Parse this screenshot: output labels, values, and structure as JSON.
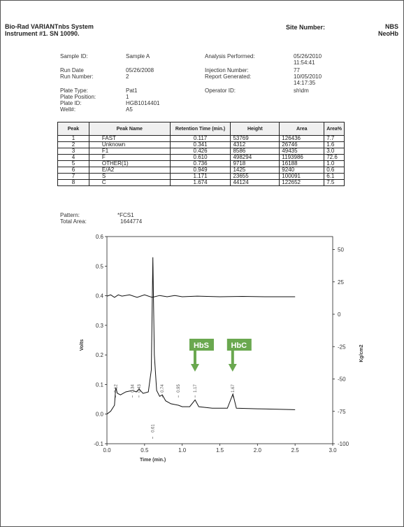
{
  "header": {
    "system": "Bio-Rad VARIANTnbs System",
    "instrument": "Instrument #1. SN 10090.",
    "site_label": "Site Number:",
    "site_value_1": "NBS",
    "site_value_2": "NeoHb"
  },
  "info": {
    "sample_id_label": "Sample ID:",
    "sample_id": "Sample A",
    "run_date_label": "Run Date",
    "run_date": "05/26/2008",
    "run_number_label": "Run Number:",
    "run_number": "2",
    "plate_type_label": "Plate Type:",
    "plate_type": "Pat1",
    "plate_position_label": "Plate Position:",
    "plate_position": "1",
    "plate_id_label": "Plate ID:",
    "plate_id": "HGB1014401",
    "well_label": "Well#:",
    "well": "A5",
    "analysis_label": "Analysis Performed:",
    "analysis_date": "05/26/2010",
    "analysis_time": "11:54:41",
    "injection_label": "Injection Number:",
    "injection": "77",
    "report_label": "Report Generated:",
    "report_date": "10/05/2010",
    "report_time": "14:17:35",
    "operator_label": "Operator ID:",
    "operator": "sh\\dm"
  },
  "table": {
    "headers": [
      "Peak",
      "Peak Name",
      "Retention Time (min.)",
      "Height",
      "Area",
      "Area%"
    ],
    "rows": [
      [
        "1",
        "FAST",
        "0.117",
        "53769",
        "126436",
        "7.7"
      ],
      [
        "2",
        "Unknown",
        "0.341",
        "4312",
        "26746",
        "1.6"
      ],
      [
        "3",
        "F1",
        "0.426",
        "8586",
        "49435",
        "3.0"
      ],
      [
        "4",
        "F",
        "0.610",
        "498294",
        "1193986",
        "72.6"
      ],
      [
        "5",
        "OTHER(1)",
        "0.736",
        "9718",
        "16188",
        "1.0"
      ],
      [
        "6",
        "E/A2",
        "0.949",
        "1425",
        "9240",
        "0.6"
      ],
      [
        "7",
        "S",
        "1.171",
        "23655",
        "100091",
        "6.1"
      ],
      [
        "8",
        "C",
        "1.674",
        "44124",
        "122652",
        "7.5"
      ]
    ]
  },
  "pattern": {
    "pattern_label": "Pattern:",
    "pattern_value": "*FCS1",
    "total_area_label": "Total Area:",
    "total_area_value": "1644774"
  },
  "chart_data": {
    "type": "line",
    "xlabel": "Time (min.)",
    "ylabel": "Volts",
    "y2label": "Kg/cm2",
    "xlim": [
      0,
      3.0
    ],
    "ylim": [
      -0.1,
      0.6
    ],
    "y2lim": [
      -100,
      60
    ],
    "x_ticks": [
      "0.0",
      "0.5",
      "1.0",
      "1.5",
      "2.0",
      "2.5",
      "3.0"
    ],
    "y_ticks": [
      "-0.1",
      "0.0",
      "0.1",
      "0.2",
      "0.3",
      "0.4",
      "0.5",
      "0.6"
    ],
    "y2_ticks": [
      "50",
      "25",
      "0",
      "-25",
      "-50",
      "-75",
      "-100"
    ],
    "peak_labels": [
      {
        "x": 0.117,
        "label": "0.12"
      },
      {
        "x": 0.341,
        "label": "0.34"
      },
      {
        "x": 0.426,
        "label": "0.43"
      },
      {
        "x": 0.61,
        "label": "0.61"
      },
      {
        "x": 0.736,
        "label": "0.74"
      },
      {
        "x": 0.949,
        "label": "0.95"
      },
      {
        "x": 1.171,
        "label": "1.17"
      },
      {
        "x": 1.674,
        "label": "1.67"
      }
    ],
    "callouts": [
      {
        "label": "HbS",
        "x": 1.17
      },
      {
        "label": "HbC",
        "x": 1.67
      }
    ],
    "callout_color": "#6aa84f",
    "series": [
      {
        "name": "",
        "axis": "volts",
        "points": [
          [
            0.0,
            0.0
          ],
          [
            0.05,
            0.01
          ],
          [
            0.1,
            0.03
          ],
          [
            0.117,
            0.09
          ],
          [
            0.14,
            0.07
          ],
          [
            0.18,
            0.065
          ],
          [
            0.25,
            0.075
          ],
          [
            0.341,
            0.08
          ],
          [
            0.39,
            0.075
          ],
          [
            0.426,
            0.085
          ],
          [
            0.48,
            0.07
          ],
          [
            0.55,
            0.075
          ],
          [
            0.59,
            0.15
          ],
          [
            0.61,
            0.53
          ],
          [
            0.63,
            0.2
          ],
          [
            0.66,
            0.08
          ],
          [
            0.7,
            0.06
          ],
          [
            0.736,
            0.065
          ],
          [
            0.78,
            0.045
          ],
          [
            0.85,
            0.035
          ],
          [
            0.949,
            0.03
          ],
          [
            1.0,
            0.025
          ],
          [
            1.1,
            0.025
          ],
          [
            1.171,
            0.048
          ],
          [
            1.22,
            0.025
          ],
          [
            1.4,
            0.02
          ],
          [
            1.6,
            0.02
          ],
          [
            1.674,
            0.068
          ],
          [
            1.72,
            0.02
          ],
          [
            2.0,
            0.018
          ],
          [
            2.5,
            0.015
          ]
        ]
      },
      {
        "name": "",
        "axis": "pressure",
        "points": [
          [
            0.0,
            14
          ],
          [
            0.05,
            15
          ],
          [
            0.1,
            13
          ],
          [
            0.15,
            15
          ],
          [
            0.2,
            14
          ],
          [
            0.3,
            15
          ],
          [
            0.4,
            13
          ],
          [
            0.5,
            15
          ],
          [
            0.6,
            13
          ],
          [
            0.7,
            14.5
          ],
          [
            0.8,
            13.5
          ],
          [
            0.9,
            14.5
          ],
          [
            1.0,
            13.5
          ],
          [
            1.2,
            14
          ],
          [
            1.5,
            13.5
          ],
          [
            1.8,
            13.8
          ],
          [
            2.1,
            13.5
          ],
          [
            2.5,
            13.5
          ]
        ]
      }
    ]
  }
}
